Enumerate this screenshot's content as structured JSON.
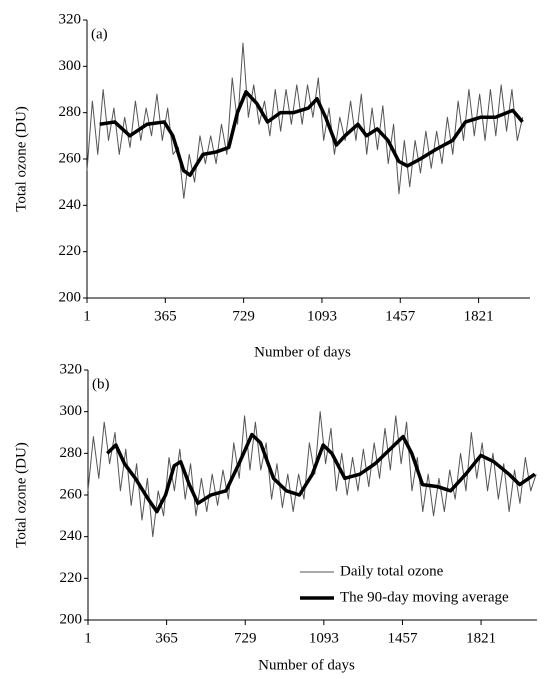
{
  "chart_data": [
    {
      "type": "line",
      "panel_label": "(a)",
      "xlabel": "Number of days",
      "ylabel": "Total ozone (DU)",
      "xlim": [
        1,
        2060
      ],
      "xticks": [
        1,
        365,
        729,
        1093,
        1457,
        1821
      ],
      "ylim": [
        200,
        320
      ],
      "yticks": [
        200,
        220,
        240,
        260,
        280,
        300,
        320
      ],
      "series": [
        {
          "name": "Daily total ozone",
          "color": "#555555",
          "x": [
            1,
            26,
            51,
            76,
            101,
            126,
            151,
            176,
            201,
            226,
            251,
            276,
            301,
            326,
            351,
            376,
            401,
            426,
            451,
            476,
            501,
            526,
            551,
            576,
            601,
            626,
            651,
            676,
            701,
            726,
            751,
            776,
            801,
            826,
            851,
            876,
            901,
            926,
            951,
            976,
            1001,
            1026,
            1051,
            1076,
            1101,
            1126,
            1151,
            1176,
            1201,
            1226,
            1251,
            1276,
            1301,
            1326,
            1351,
            1376,
            1401,
            1426,
            1451,
            1476,
            1501,
            1526,
            1551,
            1576,
            1601,
            1626,
            1651,
            1676,
            1701,
            1726,
            1751,
            1776,
            1801,
            1826,
            1851,
            1876,
            1901,
            1926,
            1951,
            1976,
            2001,
            2026
          ],
          "values": [
            255,
            285,
            262,
            290,
            268,
            282,
            262,
            278,
            265,
            285,
            268,
            282,
            270,
            288,
            268,
            282,
            262,
            265,
            243,
            262,
            250,
            270,
            258,
            270,
            258,
            275,
            262,
            295,
            275,
            310,
            278,
            292,
            275,
            285,
            270,
            290,
            272,
            290,
            275,
            292,
            275,
            292,
            278,
            295,
            268,
            282,
            262,
            278,
            268,
            285,
            268,
            288,
            262,
            282,
            264,
            283,
            258,
            275,
            245,
            268,
            248,
            268,
            254,
            272,
            256,
            272,
            258,
            278,
            262,
            285,
            268,
            290,
            270,
            288,
            268,
            290,
            270,
            292,
            272,
            290,
            268,
            278
          ]
        },
        {
          "name": "The 90-day moving average",
          "color": "#000000",
          "x": [
            60,
            130,
            200,
            280,
            360,
            400,
            450,
            480,
            540,
            600,
            660,
            700,
            740,
            790,
            840,
            900,
            960,
            1030,
            1070,
            1110,
            1160,
            1200,
            1260,
            1300,
            1350,
            1400,
            1450,
            1490,
            1550,
            1620,
            1700,
            1760,
            1830,
            1900,
            1980,
            2025
          ],
          "values": [
            275,
            276,
            270,
            275,
            276,
            270,
            255,
            253,
            262,
            263,
            265,
            280,
            289,
            284,
            276,
            280,
            280,
            282,
            286,
            278,
            266,
            270,
            275,
            270,
            273,
            268,
            259,
            257,
            260,
            264,
            268,
            276,
            278,
            278,
            281,
            276
          ]
        }
      ]
    },
    {
      "type": "line",
      "panel_label": "(b)",
      "xlabel": "Number of days",
      "ylabel": "Total ozone (DU)",
      "xlim": [
        1,
        2080
      ],
      "xticks": [
        1,
        365,
        729,
        1093,
        1457,
        1821
      ],
      "ylim": [
        200,
        320
      ],
      "yticks": [
        200,
        220,
        240,
        260,
        280,
        300,
        320
      ],
      "legend": "lower right",
      "series": [
        {
          "name": "Daily total ozone",
          "color": "#555555",
          "x": [
            1,
            26,
            51,
            76,
            101,
            126,
            151,
            176,
            201,
            226,
            251,
            276,
            301,
            326,
            351,
            376,
            401,
            426,
            451,
            476,
            501,
            526,
            551,
            576,
            601,
            626,
            651,
            676,
            701,
            726,
            751,
            776,
            801,
            826,
            851,
            876,
            901,
            926,
            951,
            976,
            1001,
            1026,
            1051,
            1076,
            1101,
            1126,
            1151,
            1176,
            1201,
            1226,
            1251,
            1276,
            1301,
            1326,
            1351,
            1376,
            1401,
            1426,
            1451,
            1476,
            1501,
            1526,
            1551,
            1576,
            1601,
            1626,
            1651,
            1676,
            1701,
            1726,
            1751,
            1776,
            1801,
            1826,
            1851,
            1876,
            1901,
            1926,
            1951,
            1976,
            2001,
            2026,
            2051,
            2076
          ],
          "values": [
            262,
            288,
            268,
            295,
            275,
            290,
            262,
            282,
            255,
            275,
            248,
            268,
            240,
            262,
            250,
            278,
            262,
            282,
            258,
            275,
            250,
            268,
            252,
            270,
            255,
            272,
            258,
            285,
            268,
            298,
            272,
            295,
            272,
            285,
            258,
            275,
            254,
            270,
            252,
            270,
            258,
            285,
            270,
            300,
            275,
            292,
            262,
            280,
            260,
            278,
            262,
            282,
            264,
            285,
            268,
            292,
            272,
            298,
            275,
            295,
            262,
            278,
            252,
            270,
            250,
            268,
            252,
            272,
            258,
            280,
            262,
            290,
            268,
            285,
            262,
            280,
            258,
            275,
            252,
            272,
            256,
            278,
            262,
            270
          ]
        },
        {
          "name": "The 90-day moving average",
          "color": "#000000",
          "x": [
            90,
            130,
            170,
            220,
            280,
            320,
            360,
            400,
            430,
            470,
            510,
            570,
            640,
            700,
            760,
            800,
            860,
            920,
            980,
            1040,
            1090,
            1130,
            1190,
            1260,
            1330,
            1400,
            1460,
            1500,
            1550,
            1620,
            1680,
            1750,
            1820,
            1880,
            1950,
            2000,
            2070
          ],
          "values": [
            280,
            284,
            275,
            268,
            258,
            252,
            260,
            274,
            276,
            265,
            256,
            260,
            262,
            275,
            289,
            285,
            268,
            262,
            260,
            270,
            284,
            280,
            268,
            270,
            275,
            282,
            288,
            280,
            265,
            264,
            262,
            270,
            279,
            276,
            270,
            265,
            270
          ]
        }
      ]
    }
  ]
}
